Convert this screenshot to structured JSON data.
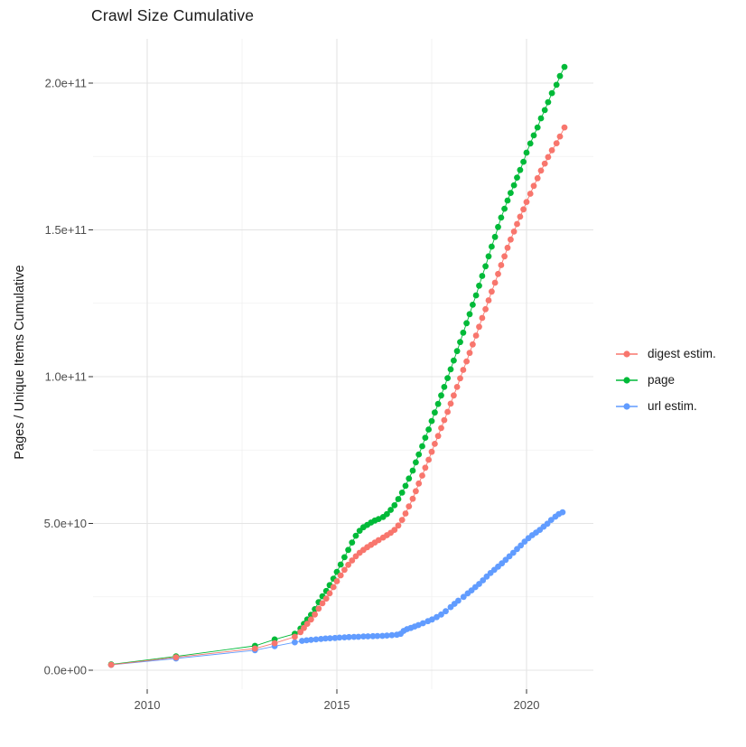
{
  "title": "Crawl Size Cumulative",
  "y_axis": {
    "label": "Pages / Unique Items Cumulative",
    "ticks": [
      {
        "v": 0,
        "label": "0.0e+00"
      },
      {
        "v": 50,
        "label": "5.0e+10"
      },
      {
        "v": 100,
        "label": "1.0e+11"
      },
      {
        "v": 150,
        "label": "1.5e+11"
      },
      {
        "v": 200,
        "label": "2.0e+11"
      }
    ],
    "minor": [
      25,
      75,
      125,
      175
    ]
  },
  "x_axis": {
    "ticks": [
      {
        "v": 2010,
        "label": "2010"
      },
      {
        "v": 2015,
        "label": "2015"
      },
      {
        "v": 2020,
        "label": "2020"
      }
    ],
    "minor": [
      2012.5,
      2017.5
    ]
  },
  "legend": [
    {
      "label": "digest estim.",
      "color": "#F8766D"
    },
    {
      "label": "page",
      "color": "#00BA38"
    },
    {
      "label": "url estim.",
      "color": "#619CFF"
    }
  ],
  "colors": {
    "digest": "#F8766D",
    "page": "#00BA38",
    "url": "#619CFF",
    "grid_major": "#e4e4e4",
    "grid_minor": "#f0f0f0",
    "tick_text": "#4d4d4d",
    "axis_text": "#1a1a1a",
    "tick_mark": "#333333"
  },
  "chart_data": {
    "type": "scatter",
    "title": "Crawl Size Cumulative",
    "xlabel": "",
    "ylabel": "Pages / Unique Items Cumulative",
    "x_unit": "year",
    "y_unit": "items, billions (1e9)",
    "xlim": [
      2008.4,
      2021.6
    ],
    "ylim": [
      -8,
      216
    ],
    "grid": true,
    "legend_position": "right",
    "x_ticks": [
      2010,
      2015,
      2020
    ],
    "y_tick_labels": [
      "0.0e+00",
      "5.0e+10",
      "1.0e+11",
      "1.5e+11",
      "2.0e+11"
    ],
    "series": [
      {
        "name": "url estim.",
        "color": "#619CFF",
        "points": [
          [
            2009.05,
            1.8
          ],
          [
            2010.76,
            4.0
          ],
          [
            2012.84,
            6.8
          ],
          [
            2013.36,
            8.2
          ],
          [
            2013.89,
            9.5
          ],
          [
            2014.08,
            10.0
          ],
          [
            2014.2,
            10.2
          ],
          [
            2014.32,
            10.35
          ],
          [
            2014.45,
            10.5
          ],
          [
            2014.58,
            10.65
          ],
          [
            2014.7,
            10.8
          ],
          [
            2014.82,
            10.9
          ],
          [
            2014.95,
            11.0
          ],
          [
            2015.07,
            11.1
          ],
          [
            2015.2,
            11.2
          ],
          [
            2015.32,
            11.3
          ],
          [
            2015.45,
            11.35
          ],
          [
            2015.57,
            11.4
          ],
          [
            2015.7,
            11.5
          ],
          [
            2015.82,
            11.55
          ],
          [
            2015.95,
            11.6
          ],
          [
            2016.07,
            11.65
          ],
          [
            2016.2,
            11.7
          ],
          [
            2016.32,
            11.8
          ],
          [
            2016.45,
            11.95
          ],
          [
            2016.58,
            12.1
          ],
          [
            2016.68,
            12.4
          ],
          [
            2016.76,
            13.4
          ],
          [
            2016.85,
            14.0
          ],
          [
            2016.95,
            14.4
          ],
          [
            2017.05,
            14.9
          ],
          [
            2017.15,
            15.4
          ],
          [
            2017.27,
            16.0
          ],
          [
            2017.4,
            16.7
          ],
          [
            2017.51,
            17.3
          ],
          [
            2017.63,
            18.1
          ],
          [
            2017.75,
            19.0
          ],
          [
            2017.87,
            20.1
          ],
          [
            2018.0,
            21.5
          ],
          [
            2018.1,
            22.6
          ],
          [
            2018.2,
            23.7
          ],
          [
            2018.34,
            25.0
          ],
          [
            2018.45,
            26.2
          ],
          [
            2018.55,
            27.2
          ],
          [
            2018.65,
            28.3
          ],
          [
            2018.75,
            29.4
          ],
          [
            2018.85,
            30.6
          ],
          [
            2018.95,
            31.9
          ],
          [
            2019.05,
            33.1
          ],
          [
            2019.15,
            34.2
          ],
          [
            2019.25,
            35.3
          ],
          [
            2019.35,
            36.4
          ],
          [
            2019.45,
            37.6
          ],
          [
            2019.55,
            38.8
          ],
          [
            2019.65,
            40.0
          ],
          [
            2019.75,
            41.3
          ],
          [
            2019.85,
            42.5
          ],
          [
            2019.95,
            43.8
          ],
          [
            2020.05,
            45.0
          ],
          [
            2020.15,
            46.0
          ],
          [
            2020.25,
            46.9
          ],
          [
            2020.35,
            47.8
          ],
          [
            2020.45,
            48.9
          ],
          [
            2020.55,
            49.9
          ],
          [
            2020.65,
            51.2
          ],
          [
            2020.76,
            52.3
          ],
          [
            2020.85,
            53.2
          ],
          [
            2020.95,
            53.8
          ]
        ]
      },
      {
        "name": "page",
        "color": "#00BA38",
        "points": [
          [
            2009.05,
            2.0
          ],
          [
            2010.76,
            4.7
          ],
          [
            2012.84,
            8.3
          ],
          [
            2013.36,
            10.5
          ],
          [
            2013.89,
            12.4
          ],
          [
            2014.04,
            14.2
          ],
          [
            2014.13,
            15.8
          ],
          [
            2014.22,
            17.3
          ],
          [
            2014.32,
            18.9
          ],
          [
            2014.42,
            20.8
          ],
          [
            2014.52,
            23.2
          ],
          [
            2014.62,
            25.2
          ],
          [
            2014.72,
            27.0
          ],
          [
            2014.81,
            29.0
          ],
          [
            2014.91,
            31.2
          ],
          [
            2015.0,
            33.5
          ],
          [
            2015.1,
            36.0
          ],
          [
            2015.2,
            38.5
          ],
          [
            2015.3,
            41.0
          ],
          [
            2015.4,
            43.5
          ],
          [
            2015.5,
            45.8
          ],
          [
            2015.6,
            47.5
          ],
          [
            2015.7,
            48.7
          ],
          [
            2015.8,
            49.5
          ],
          [
            2015.9,
            50.3
          ],
          [
            2016.0,
            51.0
          ],
          [
            2016.1,
            51.5
          ],
          [
            2016.22,
            52.2
          ],
          [
            2016.32,
            53.2
          ],
          [
            2016.42,
            54.6
          ],
          [
            2016.52,
            56.2
          ],
          [
            2016.62,
            58.3
          ],
          [
            2016.72,
            60.5
          ],
          [
            2016.81,
            62.8
          ],
          [
            2016.9,
            65.3
          ],
          [
            2017.0,
            68.0
          ],
          [
            2017.08,
            70.8
          ],
          [
            2017.16,
            73.5
          ],
          [
            2017.25,
            76.3
          ],
          [
            2017.33,
            79.2
          ],
          [
            2017.42,
            82.0
          ],
          [
            2017.5,
            84.9
          ],
          [
            2017.58,
            87.8
          ],
          [
            2017.67,
            90.7
          ],
          [
            2017.75,
            93.6
          ],
          [
            2017.83,
            96.5
          ],
          [
            2017.92,
            99.5
          ],
          [
            2018.0,
            102.5
          ],
          [
            2018.08,
            105.5
          ],
          [
            2018.17,
            108.7
          ],
          [
            2018.25,
            111.8
          ],
          [
            2018.33,
            115.0
          ],
          [
            2018.42,
            118.2
          ],
          [
            2018.5,
            121.3
          ],
          [
            2018.58,
            124.5
          ],
          [
            2018.67,
            127.7
          ],
          [
            2018.75,
            131.0
          ],
          [
            2018.83,
            134.3
          ],
          [
            2018.92,
            137.6
          ],
          [
            2019.0,
            141.0
          ],
          [
            2019.08,
            144.3
          ],
          [
            2019.17,
            147.6
          ],
          [
            2019.25,
            151.0
          ],
          [
            2019.33,
            154.2
          ],
          [
            2019.42,
            157.2
          ],
          [
            2019.5,
            160.0
          ],
          [
            2019.58,
            162.6
          ],
          [
            2019.67,
            165.2
          ],
          [
            2019.75,
            167.8
          ],
          [
            2019.83,
            170.4
          ],
          [
            2019.92,
            173.2
          ],
          [
            2020.0,
            176.3
          ],
          [
            2020.1,
            179.4
          ],
          [
            2020.19,
            182.2
          ],
          [
            2020.29,
            184.9
          ],
          [
            2020.38,
            188.0
          ],
          [
            2020.48,
            190.8
          ],
          [
            2020.57,
            193.5
          ],
          [
            2020.67,
            196.6
          ],
          [
            2020.79,
            199.4
          ],
          [
            2020.88,
            202.4
          ],
          [
            2021.0,
            205.5
          ]
        ]
      },
      {
        "name": "digest estim.",
        "color": "#F8766D",
        "points": [
          [
            2009.05,
            1.85
          ],
          [
            2010.76,
            4.4
          ],
          [
            2012.84,
            7.4
          ],
          [
            2013.36,
            9.2
          ],
          [
            2013.89,
            11.4
          ],
          [
            2014.04,
            13.0
          ],
          [
            2014.13,
            14.4
          ],
          [
            2014.22,
            15.8
          ],
          [
            2014.32,
            17.3
          ],
          [
            2014.42,
            19.0
          ],
          [
            2014.52,
            21.0
          ],
          [
            2014.62,
            22.8
          ],
          [
            2014.72,
            24.4
          ],
          [
            2014.81,
            26.2
          ],
          [
            2014.91,
            28.3
          ],
          [
            2015.0,
            30.3
          ],
          [
            2015.1,
            32.3
          ],
          [
            2015.2,
            34.2
          ],
          [
            2015.3,
            35.9
          ],
          [
            2015.4,
            37.4
          ],
          [
            2015.5,
            38.8
          ],
          [
            2015.6,
            40.0
          ],
          [
            2015.7,
            41.0
          ],
          [
            2015.8,
            41.9
          ],
          [
            2015.9,
            42.7
          ],
          [
            2016.0,
            43.5
          ],
          [
            2016.1,
            44.3
          ],
          [
            2016.22,
            45.2
          ],
          [
            2016.32,
            46.0
          ],
          [
            2016.42,
            46.8
          ],
          [
            2016.52,
            47.8
          ],
          [
            2016.62,
            49.3
          ],
          [
            2016.72,
            51.2
          ],
          [
            2016.81,
            53.4
          ],
          [
            2016.9,
            55.8
          ],
          [
            2017.0,
            58.4
          ],
          [
            2017.08,
            61.0
          ],
          [
            2017.16,
            63.6
          ],
          [
            2017.25,
            66.3
          ],
          [
            2017.33,
            69.0
          ],
          [
            2017.42,
            71.7
          ],
          [
            2017.5,
            74.4
          ],
          [
            2017.58,
            77.1
          ],
          [
            2017.67,
            79.8
          ],
          [
            2017.75,
            82.5
          ],
          [
            2017.83,
            85.2
          ],
          [
            2017.92,
            88.0
          ],
          [
            2018.0,
            90.8
          ],
          [
            2018.08,
            93.6
          ],
          [
            2018.17,
            96.5
          ],
          [
            2018.25,
            99.4
          ],
          [
            2018.33,
            102.3
          ],
          [
            2018.42,
            105.2
          ],
          [
            2018.5,
            108.1
          ],
          [
            2018.58,
            111.0
          ],
          [
            2018.67,
            114.0
          ],
          [
            2018.75,
            117.0
          ],
          [
            2018.83,
            120.0
          ],
          [
            2018.92,
            123.0
          ],
          [
            2019.0,
            126.0
          ],
          [
            2019.08,
            129.0
          ],
          [
            2019.17,
            132.0
          ],
          [
            2019.25,
            135.0
          ],
          [
            2019.33,
            138.0
          ],
          [
            2019.42,
            141.0
          ],
          [
            2019.5,
            143.9
          ],
          [
            2019.58,
            146.7
          ],
          [
            2019.67,
            149.4
          ],
          [
            2019.75,
            152.0
          ],
          [
            2019.83,
            154.5
          ],
          [
            2019.92,
            157.0
          ],
          [
            2020.0,
            159.5
          ],
          [
            2020.1,
            162.3
          ],
          [
            2020.19,
            165.0
          ],
          [
            2020.29,
            167.6
          ],
          [
            2020.38,
            170.2
          ],
          [
            2020.48,
            172.6
          ],
          [
            2020.57,
            174.8
          ],
          [
            2020.67,
            177.1
          ],
          [
            2020.79,
            179.5
          ],
          [
            2020.88,
            181.8
          ],
          [
            2021.0,
            184.9
          ]
        ]
      }
    ]
  }
}
